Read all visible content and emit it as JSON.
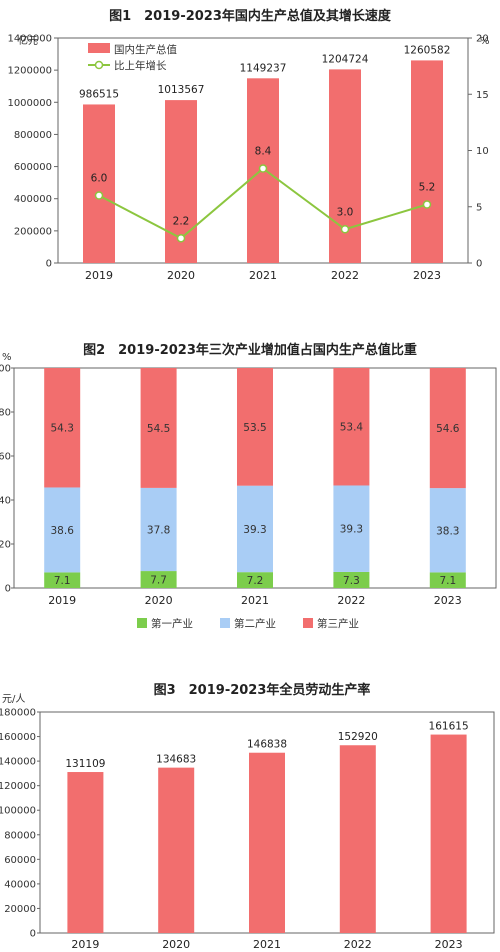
{
  "chart_data": [
    {
      "type": "bar",
      "title": "图1　2019-2023年国内生产总值及其增长速度",
      "ylabel": "亿元",
      "y2label": "%",
      "categories": [
        "2019",
        "2020",
        "2021",
        "2022",
        "2023"
      ],
      "ylim": [
        0,
        1400000
      ],
      "yticks": [
        "0",
        "200000",
        "400000",
        "600000",
        "800000",
        "1000000",
        "1200000",
        "1400000"
      ],
      "y2lim": [
        0,
        20
      ],
      "y2ticks": [
        "0",
        "5",
        "10",
        "15",
        "20"
      ],
      "series": [
        {
          "name": "国内生产总值",
          "type": "bar",
          "color": "#f26e6e",
          "values": [
            986515,
            1013567,
            1149237,
            1204724,
            1260582
          ],
          "labels": [
            "986515",
            "1013567",
            "1149237",
            "1204724",
            "1260582"
          ]
        },
        {
          "name": "比上年增长",
          "type": "line",
          "axis": "right",
          "color": "#8cc63f",
          "values": [
            6.0,
            2.2,
            8.4,
            3.0,
            5.2
          ],
          "labels": [
            "6.0",
            "2.2",
            "8.4",
            "3.0",
            "5.2"
          ]
        }
      ],
      "legend": "top-left"
    },
    {
      "type": "bar",
      "stacked": true,
      "title": "图2　2019-2023年三次产业增加值占国内生产总值比重",
      "ylabel": "%",
      "categories": [
        "2019",
        "2020",
        "2021",
        "2022",
        "2023"
      ],
      "ylim": [
        0,
        100
      ],
      "yticks": [
        "0",
        "20",
        "40",
        "60",
        "80",
        "100"
      ],
      "series": [
        {
          "name": "第一产业",
          "color": "#7ccd4c",
          "values": [
            7.1,
            7.7,
            7.2,
            7.3,
            7.1
          ],
          "labels": [
            "7.1",
            "7.7",
            "7.2",
            "7.3",
            "7.1"
          ]
        },
        {
          "name": "第二产业",
          "color": "#a9cdf5",
          "values": [
            38.6,
            37.8,
            39.3,
            39.3,
            38.3
          ],
          "labels": [
            "38.6",
            "37.8",
            "39.3",
            "39.3",
            "38.3"
          ]
        },
        {
          "name": "第三产业",
          "color": "#f26e6e",
          "values": [
            54.3,
            54.5,
            53.5,
            53.4,
            54.6
          ],
          "labels": [
            "54.3",
            "54.5",
            "53.5",
            "53.4",
            "54.6"
          ]
        }
      ],
      "legend": "bottom"
    },
    {
      "type": "bar",
      "title": "图3　2019-2023年全员劳动生产率",
      "ylabel": "元/人",
      "categories": [
        "2019",
        "2020",
        "2021",
        "2022",
        "2023"
      ],
      "ylim": [
        0,
        180000
      ],
      "yticks": [
        "0",
        "20000",
        "40000",
        "60000",
        "80000",
        "100000",
        "120000",
        "140000",
        "160000",
        "180000"
      ],
      "series": [
        {
          "color": "#f26e6e",
          "values": [
            131109,
            134683,
            146838,
            152920,
            161615
          ],
          "labels": [
            "131109",
            "134683",
            "146838",
            "152920",
            "161615"
          ]
        }
      ]
    }
  ]
}
